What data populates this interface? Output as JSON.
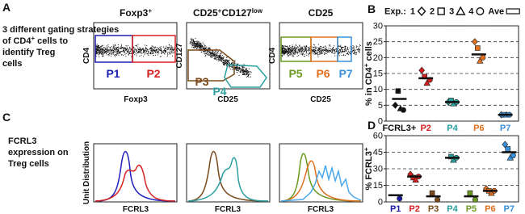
{
  "panel_labels": [
    "A",
    "B",
    "C",
    "D"
  ],
  "gating_caption": {
    "line1": "3 different gating strategies",
    "line2_a": "of CD4",
    "line2_sup": "+",
    "line2_b": " cells to",
    "line3": "identify Treg",
    "line4": "cells"
  },
  "flow_plots": [
    {
      "title": "Foxp3",
      "title_sup": "+",
      "y_label": "CD4",
      "x_label": "Foxp3",
      "gates": [
        "P1",
        "P2"
      ]
    },
    {
      "title": "CD25",
      "title_sup": "+",
      "title_b": "CD127",
      "title_b_sup": "low",
      "y_label": "CD127",
      "x_label": "CD25",
      "gates": [
        "P3",
        "P4"
      ]
    },
    {
      "title": "CD25",
      "y_label": "CD4",
      "x_label": "CD25",
      "gates": [
        "P5",
        "P6",
        "P7"
      ]
    }
  ],
  "histogram_caption": {
    "line1": "FCRL3",
    "line2": "expression on",
    "line3": "Treg cells"
  },
  "histograms": {
    "y_label": "Unit Distribution",
    "x_labels": [
      "FCRL3",
      "FCRL3",
      "FCRL3"
    ]
  },
  "chart_data": [
    {
      "type": "dot",
      "legend": true,
      "legend_title": "Exp.:",
      "y_label": [
        "% in CD4",
        "+",
        " cells"
      ],
      "categories": [
        "FCRL3+",
        "P2",
        "P4",
        "P6",
        "P7"
      ],
      "category_colors": [
        "#111111",
        "#d42020",
        "#2aa0a0",
        "#e07020",
        "#3a90d8"
      ],
      "series": [
        {
          "name": "1",
          "marker": "diamond",
          "values": [
            5,
            16,
            6,
            25,
            2
          ]
        },
        {
          "name": "2",
          "marker": "square",
          "values": [
            9.5,
            14,
            6.5,
            23,
            2
          ]
        },
        {
          "name": "3",
          "marker": "triangle",
          "values": [
            4,
            12,
            5.5,
            19,
            2
          ]
        },
        {
          "name": "4",
          "marker": "circle",
          "values": [
            3.5,
            13,
            6,
            20,
            2
          ]
        },
        {
          "name": "Ave",
          "marker": "bar",
          "values": [
            7,
            13.5,
            6,
            21,
            2
          ]
        }
      ],
      "ylim": [
        0,
        30
      ],
      "yticks": [
        0,
        5,
        10,
        15,
        20,
        25,
        30
      ],
      "grid": true
    },
    {
      "type": "dot",
      "legend": false,
      "y_label": [
        "% FCRL3",
        "+"
      ],
      "categories": [
        "P1",
        "P2",
        "P3",
        "P4",
        "P5",
        "P6",
        "P7"
      ],
      "category_colors": [
        "#1a1aa0",
        "#d42020",
        "#7a4a1a",
        "#2aa0a0",
        "#6a9a20",
        "#e07020",
        "#3a90d8"
      ],
      "series": [
        {
          "name": "1",
          "marker": "diamond",
          "values": [
            null,
            25,
            null,
            null,
            null,
            12,
            52
          ]
        },
        {
          "name": "2",
          "marker": "square",
          "values": [
            null,
            22,
            8,
            41,
            8,
            10,
            48
          ]
        },
        {
          "name": "3",
          "marker": "triangle",
          "values": [
            null,
            20,
            null,
            38,
            null,
            8,
            40
          ]
        },
        {
          "name": "4",
          "marker": "circle",
          "values": [
            3,
            23,
            2,
            40,
            2,
            10,
            42
          ]
        },
        {
          "name": "Ave",
          "marker": "bar",
          "values": [
            6,
            23,
            5,
            40,
            5,
            10,
            45
          ]
        }
      ],
      "ylim": [
        0,
        60
      ],
      "yticks": [
        0,
        15,
        30,
        45,
        60
      ],
      "grid": true
    }
  ]
}
